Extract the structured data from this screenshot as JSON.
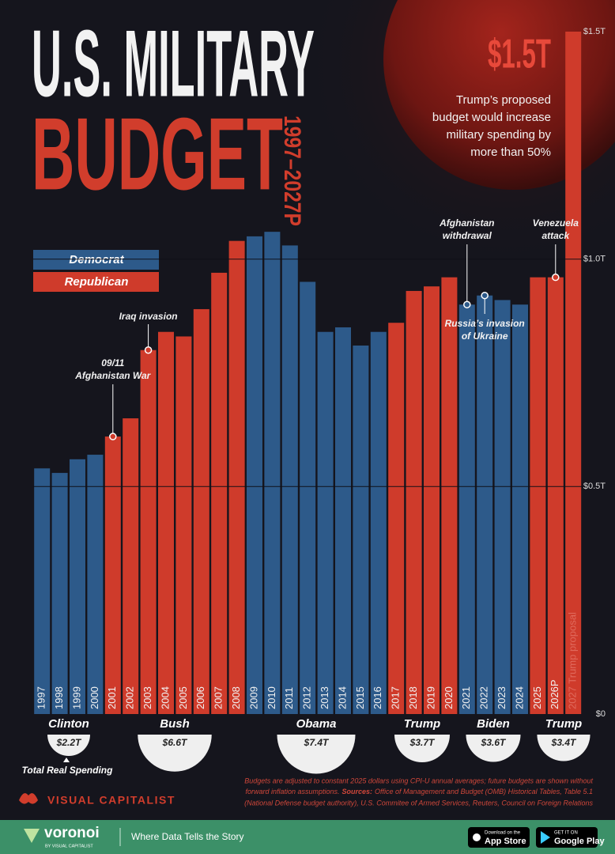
{
  "header": {
    "title_line1": "U.S. MILITARY",
    "title_line2": "BUDGET",
    "period": "1997–2027P"
  },
  "callout": {
    "value": "$1.5T",
    "lines": [
      "Trump’s proposed",
      "budget would increase",
      "military spending by",
      "more than 50%"
    ]
  },
  "chart_data": {
    "type": "bar",
    "categories": [
      "1997",
      "1998",
      "1999",
      "2000",
      "2001",
      "2002",
      "2003",
      "2004",
      "2005",
      "2006",
      "2007",
      "2008",
      "2009",
      "2010",
      "2011",
      "2012",
      "2013",
      "2014",
      "2015",
      "2016",
      "2017",
      "2018",
      "2019",
      "2020",
      "2021",
      "2022",
      "2023",
      "2024",
      "2025",
      "2026P",
      "2027 Trump proposal"
    ],
    "series": [
      {
        "name": "Democrat",
        "color": "#2d5a8a",
        "values": [
          0.54,
          0.53,
          0.56,
          0.57,
          null,
          null,
          null,
          null,
          null,
          null,
          null,
          null,
          1.05,
          1.06,
          1.03,
          0.95,
          0.84,
          0.85,
          0.81,
          0.84,
          null,
          null,
          null,
          null,
          0.9,
          0.92,
          0.91,
          0.9,
          null,
          null,
          null
        ]
      },
      {
        "name": "Republican",
        "color": "#cf3b2b",
        "values": [
          null,
          null,
          null,
          null,
          0.61,
          0.65,
          0.8,
          0.84,
          0.83,
          0.89,
          0.97,
          1.04,
          null,
          null,
          null,
          null,
          null,
          null,
          null,
          null,
          0.86,
          0.93,
          0.94,
          0.96,
          null,
          null,
          null,
          null,
          0.96,
          0.96,
          1.5
        ]
      }
    ],
    "ylim": [
      0,
      1.5
    ],
    "yticks": [
      {
        "value": 0,
        "label": "$0"
      },
      {
        "value": 0.5,
        "label": "$0.5T"
      },
      {
        "value": 1,
        "label": "$1.0T"
      },
      {
        "value": 1.5,
        "label": "$1.5T"
      }
    ],
    "grid": true,
    "annotations": [
      {
        "category": "2001",
        "lines": [
          "09/11",
          "Afghanistan War"
        ]
      },
      {
        "category": "2003",
        "lines": [
          "Iraq invasion"
        ]
      },
      {
        "category": "2021",
        "lines": [
          "Afghanistan",
          "withdrawal"
        ]
      },
      {
        "category": "2022",
        "lines": [
          "Russia’s invasion",
          "of Ukraine"
        ]
      },
      {
        "category": "2026P",
        "lines": [
          "Venezuela",
          "attack"
        ]
      }
    ],
    "presidents": [
      {
        "name": "Clinton",
        "total": 2.2,
        "label": "$2.2T"
      },
      {
        "name": "Bush",
        "total": 6.6,
        "label": "$6.6T"
      },
      {
        "name": "Obama",
        "total": 7.4,
        "label": "$7.4T"
      },
      {
        "name": "Trump",
        "total": 3.7,
        "label": "$3.7T"
      },
      {
        "name": "Biden",
        "total": 3.6,
        "label": "$3.6T"
      },
      {
        "name": "Trump",
        "total": 3.4,
        "label": "$3.4T"
      }
    ],
    "size_legend": "Total Real Spending"
  },
  "footnote": {
    "note": [
      "Budgets are adjusted to constant 2025 dollars using CPI-U annual averages; future budgets are shown without",
      "forward inflation assumptions."
    ],
    "sources_label": "Sources:",
    "sources": [
      "Office of Management and Budget (OMB) Historical Tables, Table 5.1",
      "(National Defense budget authority), U.S. Commitee of Armed Services, Reuters, Council on Foreign Relations"
    ]
  },
  "brand": "VISUAL CAPITALIST",
  "footer": {
    "logo": "voronoi",
    "logo_sub": "BY VISUAL CAPITALIST",
    "tagline": "Where Data Tells the Story",
    "app_store_small": "Download on the",
    "app_store": "App Store",
    "google_small": "GET IT ON",
    "google": "Google Play"
  }
}
